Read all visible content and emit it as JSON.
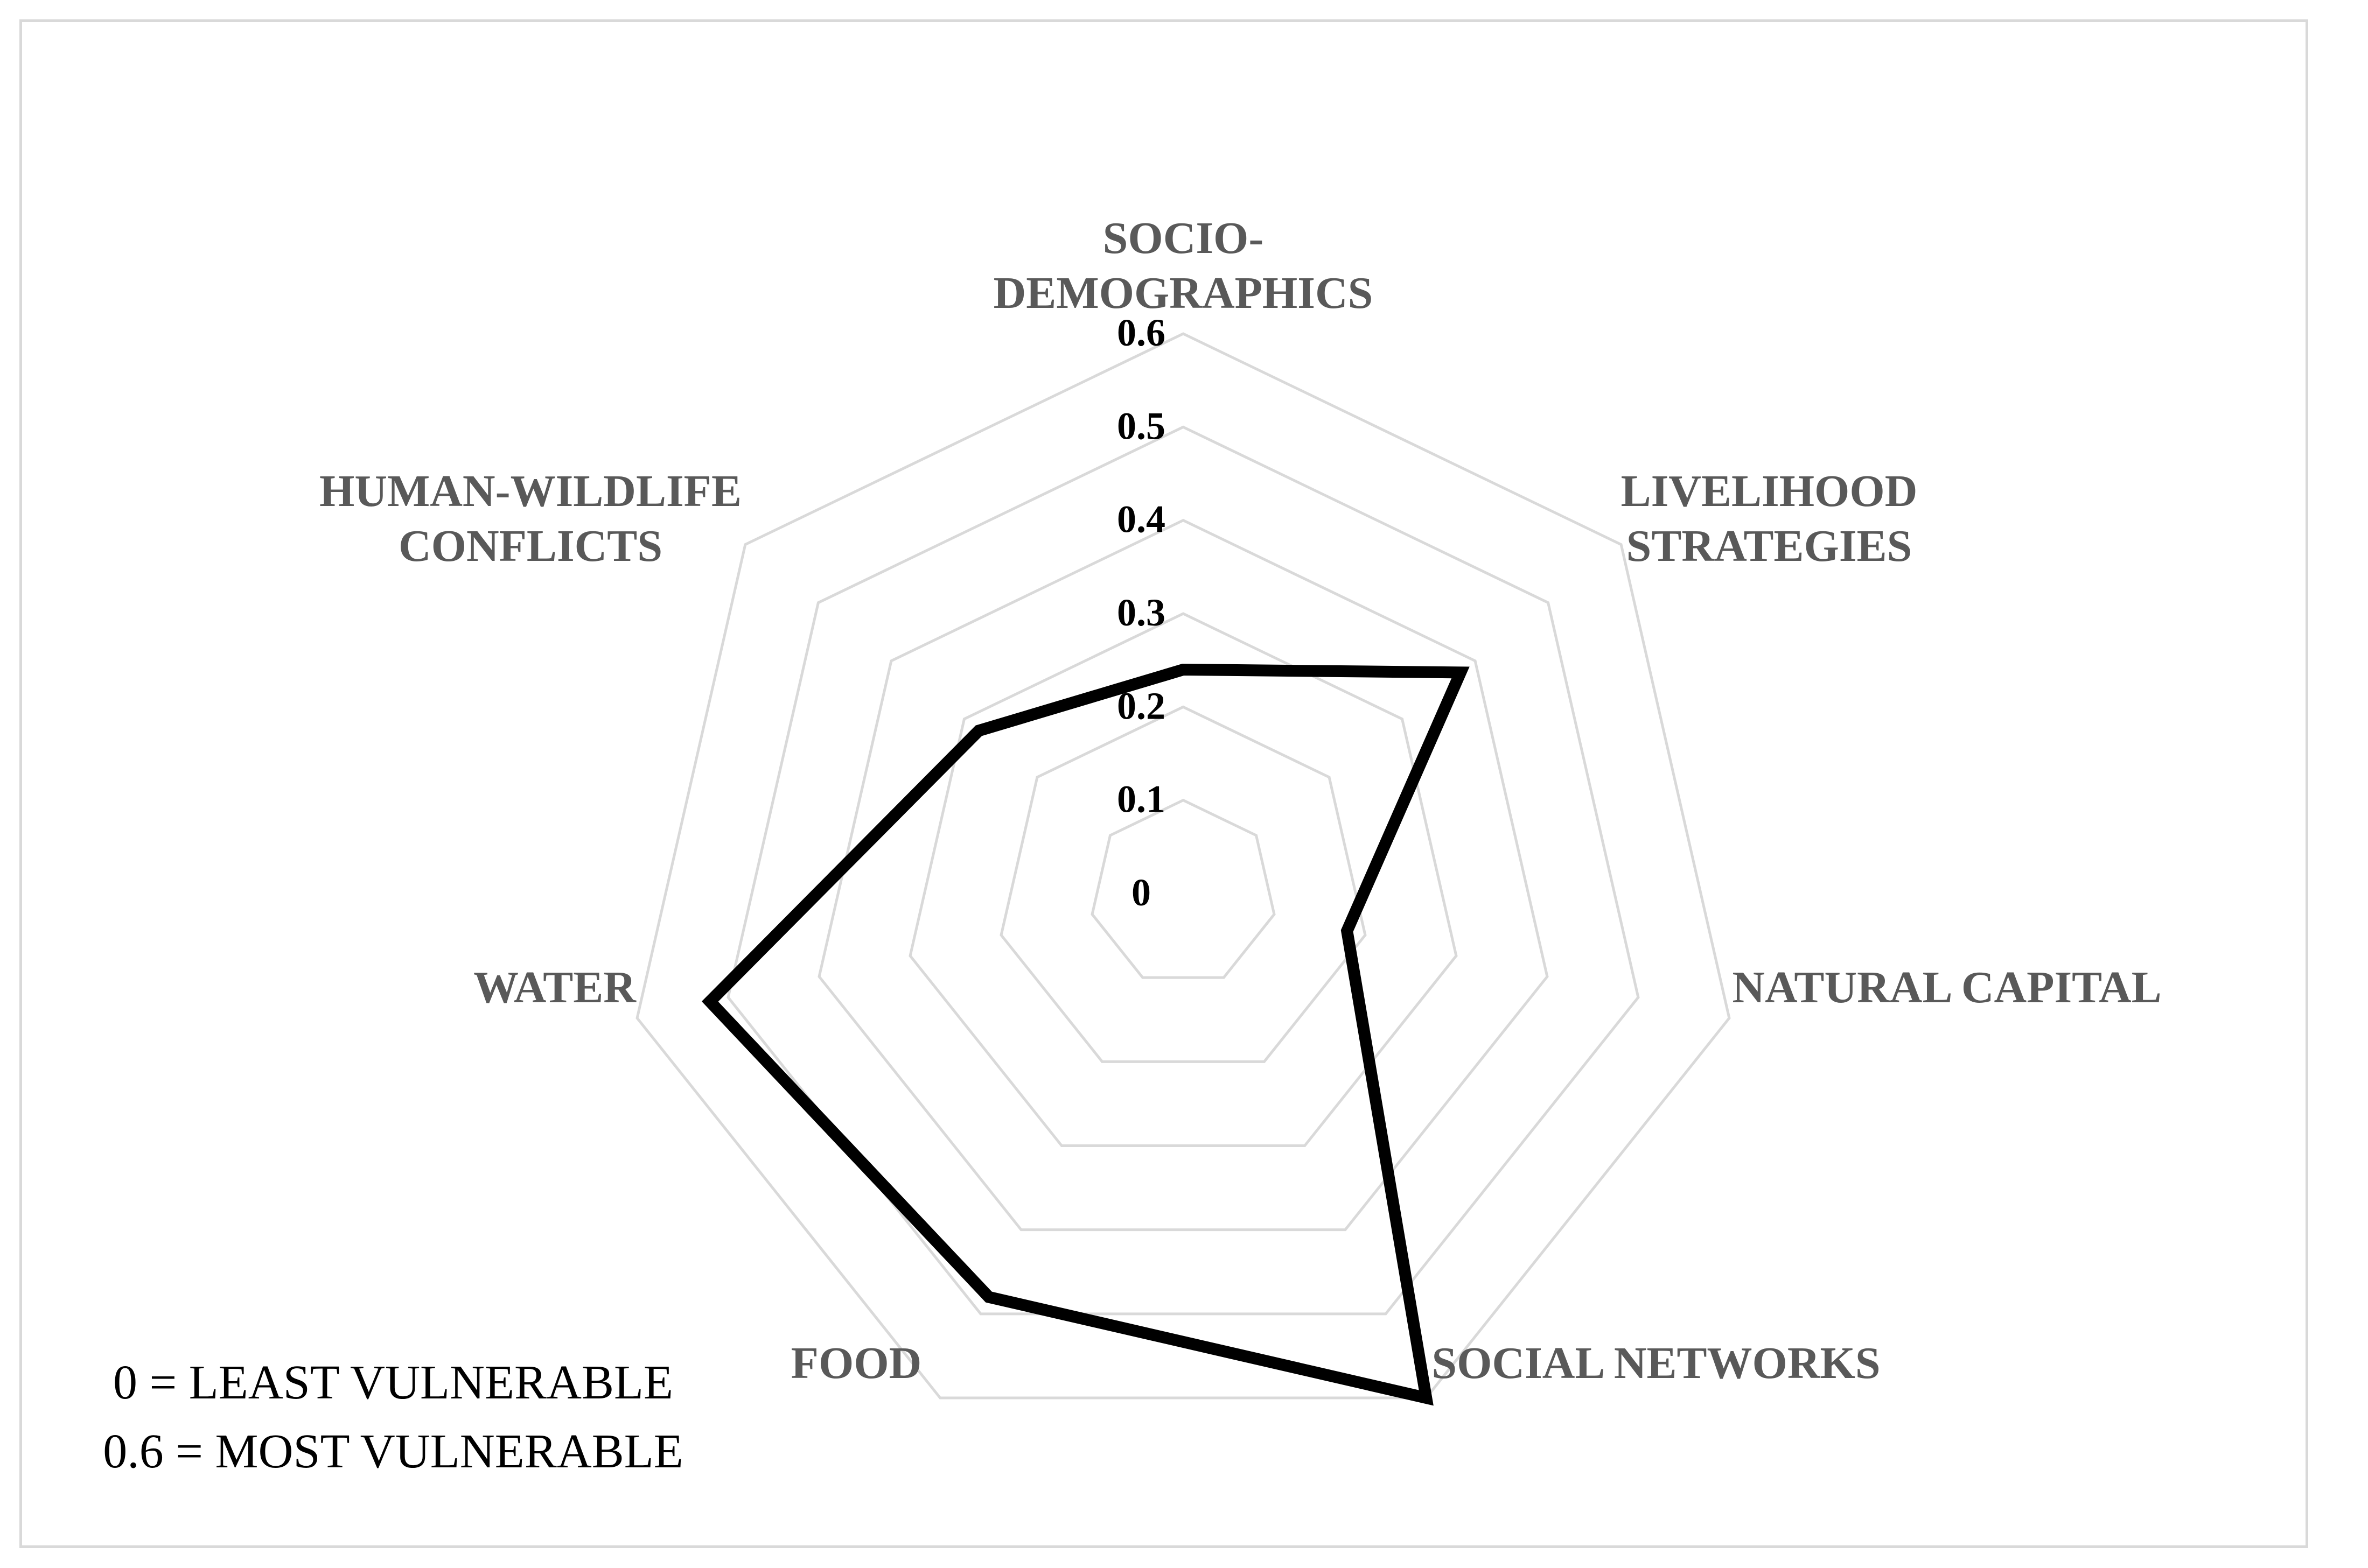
{
  "chart_data": {
    "type": "radar",
    "axes": [
      [
        "SOCIO-",
        "DEMOGRAPHICS"
      ],
      [
        "LIVELIHOOD",
        "STRATEGIES"
      ],
      [
        "NATURAL CAPITAL"
      ],
      [
        "SOCIAL NETWORKS"
      ],
      [
        "FOOD"
      ],
      [
        "WATER"
      ],
      [
        "HUMAN-WILDLIFE",
        "CONFLICTS"
      ]
    ],
    "series": [
      {
        "values": [
          0.24,
          0.38,
          0.18,
          0.6,
          0.48,
          0.52,
          0.28
        ]
      }
    ],
    "rlim": [
      0,
      0.6
    ],
    "ticks": [
      "0",
      "0.1",
      "0.2",
      "0.3",
      "0.4",
      "0.5",
      "0.6"
    ],
    "tick_values": [
      0,
      0.1,
      0.2,
      0.3,
      0.4,
      0.5,
      0.6
    ],
    "grid": true,
    "line_color": "#000000",
    "grid_color": "#d9d9d9"
  },
  "note": {
    "line1": "0 = LEAST VULNERABLE",
    "line2": "0.6 = MOST VULNERABLE"
  }
}
